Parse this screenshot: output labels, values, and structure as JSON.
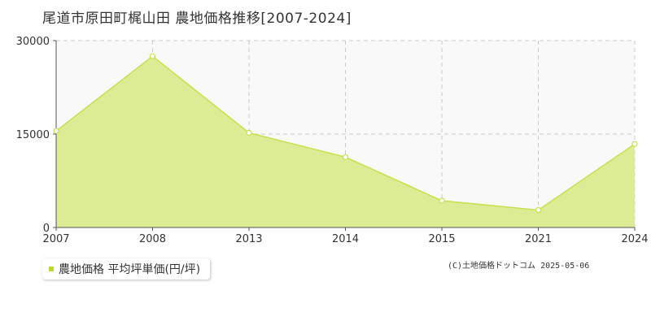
{
  "title": "尾道市原田町梶山田 農地価格推移[2007-2024]",
  "legend": {
    "label": "農地価格 平均坪単価(円/坪)"
  },
  "copyright": "(C)土地価格ドットコム 2025-05-06",
  "colors": {
    "area_fill": "#dcec94",
    "line": "#c6e04f",
    "point_fill": "#ffffff",
    "plot_background": "#f9f9f9",
    "grid": "#cccccc",
    "axis": "#555555",
    "legend_swatch": "#b8d832"
  },
  "chart_data": {
    "type": "area",
    "title": "尾道市原田町梶山田 農地価格推移[2007-2024]",
    "xlabel": "",
    "ylabel": "",
    "categories": [
      "2007",
      "2008",
      "2013",
      "2014",
      "2015",
      "2021",
      "2024"
    ],
    "series": [
      {
        "name": "農地価格 平均坪単価(円/坪)",
        "values": [
          15500,
          27500,
          15200,
          11300,
          4300,
          2800,
          13400
        ]
      }
    ],
    "yticks": [
      0,
      15000,
      30000
    ],
    "ylim": [
      0,
      30000
    ],
    "grid": true,
    "legend_position": "bottom-left"
  }
}
